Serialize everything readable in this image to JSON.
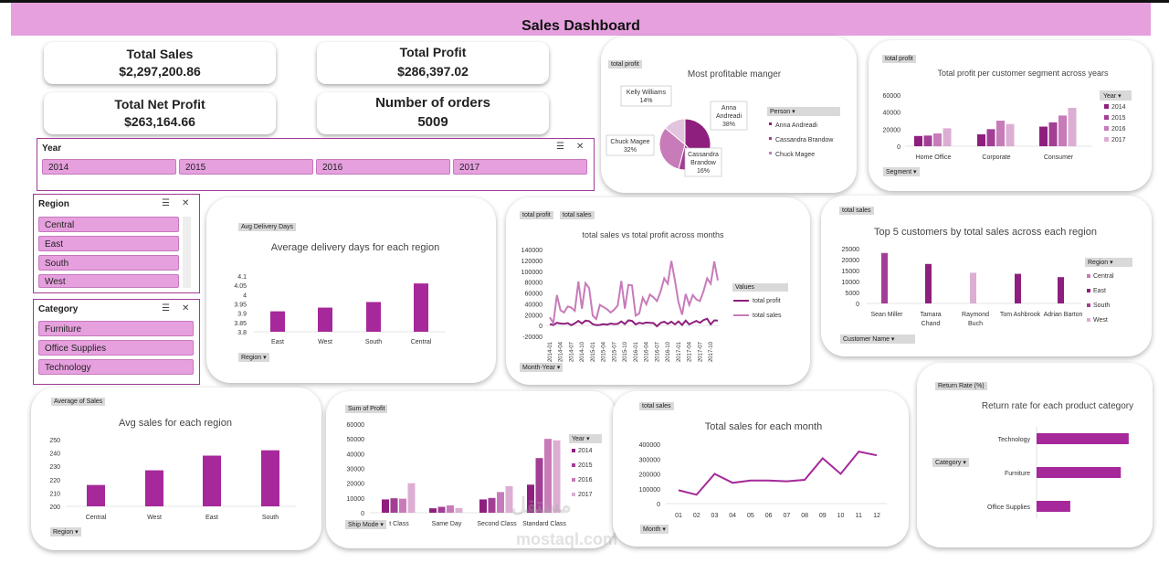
{
  "dashboard": {
    "title": "Sales Dashboard"
  },
  "kpis": {
    "total_sales": {
      "label": "Total Sales",
      "value": "$2,297,200.86"
    },
    "total_profit": {
      "label": "Total Profit",
      "value": "$286,397.02"
    },
    "total_net_profit": {
      "label": "Total Net Profit",
      "value": "$263,164.66"
    },
    "orders": {
      "label": "Number of orders",
      "value": "5009"
    }
  },
  "slicers": {
    "year": {
      "title": "Year",
      "items": [
        "2014",
        "2015",
        "2016",
        "2017"
      ]
    },
    "region": {
      "title": "Region",
      "items": [
        "Central",
        "East",
        "South",
        "West"
      ]
    },
    "category": {
      "title": "Category",
      "items": [
        "Furniture",
        "Office Supplies",
        "Technology"
      ]
    }
  },
  "colors": {
    "c2014": "#8e1f7e",
    "c2015": "#a33e95",
    "c2016": "#c87bb9",
    "c2017": "#dcaed3",
    "accent": "#a6289a",
    "banner": "#e6a0de"
  },
  "chart_data": [
    {
      "id": "pie",
      "type": "pie",
      "tag": "total profit",
      "title": "Most profitable manger",
      "legend_title": "Person",
      "slices": [
        {
          "name": "Anna Andreadi",
          "value": 38,
          "label_lines": [
            "Anna",
            "Andreadi",
            "38%"
          ]
        },
        {
          "name": "Cassandra Brandow",
          "value": 16,
          "label_lines": [
            "Cassandra",
            "Brandow",
            "16%"
          ]
        },
        {
          "name": "Chuck Magee",
          "value": 32,
          "label_lines": [
            "Chuck Magee",
            "32%"
          ]
        },
        {
          "name": "Kelly Williams",
          "value": 14,
          "label_lines": [
            "Kelly Williams",
            "14%"
          ]
        }
      ],
      "legend": [
        "Anna Andreadi",
        "Cassandra Brandow",
        "Chuck Magee"
      ]
    },
    {
      "id": "segment",
      "type": "bar",
      "tag": "total profit",
      "title": "Total profit per customer segment across years",
      "legend_title": "Year",
      "filter_label": "Segment",
      "categories": [
        "Home Office",
        "Corporate",
        "Consumer"
      ],
      "series": [
        {
          "name": "2014",
          "values": [
            12000,
            14000,
            23000
          ]
        },
        {
          "name": "2015",
          "values": [
            12500,
            20000,
            28000
          ]
        },
        {
          "name": "2016",
          "values": [
            15000,
            30000,
            36000
          ]
        },
        {
          "name": "2017",
          "values": [
            21000,
            26000,
            45000
          ]
        }
      ],
      "yticks": [
        "0",
        "20000",
        "40000",
        "60000"
      ],
      "ylim": [
        0,
        60000
      ]
    },
    {
      "id": "delivery",
      "type": "bar",
      "tag": "Avg Delivery Days",
      "title": "Average delivery days for each region",
      "filter_label": "Region",
      "categories": [
        "East",
        "West",
        "South",
        "Central"
      ],
      "values": [
        3.91,
        3.93,
        3.96,
        4.06
      ],
      "yticks": [
        "3.8",
        "3.85",
        "3.9",
        "3.95",
        "4",
        "4.05",
        "4.1"
      ],
      "ylim": [
        3.8,
        4.1
      ]
    },
    {
      "id": "months",
      "type": "line",
      "tags": [
        "total profit",
        "total sales"
      ],
      "title": "total sales vs total profit across months",
      "legend_title": "Values",
      "filter_label": "Month-Year",
      "x": [
        "2014-01",
        "2014-02",
        "2014-03",
        "2014-04",
        "2014-05",
        "2014-06",
        "2014-07",
        "2014-08",
        "2014-09",
        "2014-10",
        "2014-11",
        "2014-12",
        "2015-01",
        "2015-02",
        "2015-03",
        "2015-04",
        "2015-05",
        "2015-06",
        "2015-07",
        "2015-08",
        "2015-09",
        "2015-10",
        "2015-11",
        "2015-12",
        "2016-01",
        "2016-02",
        "2016-03",
        "2016-04",
        "2016-05",
        "2016-06",
        "2016-07",
        "2016-08",
        "2016-09",
        "2016-10",
        "2016-11",
        "2016-12",
        "2017-01",
        "2017-02",
        "2017-03",
        "2017-04",
        "2017-05",
        "2017-06",
        "2017-07",
        "2017-08",
        "2017-09",
        "2017-10",
        "2017-11",
        "2017-12"
      ],
      "xticks": [
        "2014-01",
        "2014-04",
        "2014-07",
        "2014-10",
        "2015-01",
        "2015-04",
        "2015-07",
        "2015-10",
        "2016-01",
        "2016-04",
        "2016-07",
        "2016-10",
        "2017-01",
        "2017-04",
        "2017-07",
        "2017-10"
      ],
      "series": [
        {
          "name": "total profit",
          "values": [
            2500,
            800,
            5000,
            3500,
            3000,
            4500,
            500,
            4000,
            8500,
            3500,
            9000,
            8000,
            2500,
            500,
            1000,
            2500,
            1500,
            3500,
            2500,
            3000,
            7500,
            2500,
            9500,
            8500,
            2000,
            5000,
            3500,
            5500,
            5000,
            4500,
            -1500,
            5000,
            7000,
            3000,
            7000,
            2000,
            7500,
            1000,
            9000,
            2000,
            5500,
            8500,
            5000,
            10000,
            12500,
            2000,
            9500,
            9000
          ]
        },
        {
          "name": "total sales",
          "values": [
            15000,
            4500,
            56000,
            28000,
            24000,
            35000,
            33000,
            27000,
            81000,
            31000,
            78000,
            69000,
            18000,
            12000,
            38000,
            34000,
            30000,
            24000,
            29000,
            37000,
            82000,
            31000,
            75000,
            74000,
            18000,
            22000,
            51000,
            39000,
            57000,
            52000,
            45000,
            63000,
            87000,
            77000,
            119000,
            83000,
            43000,
            20000,
            58000,
            38000,
            56000,
            48000,
            45000,
            63000,
            87000,
            77000,
            118000,
            83000
          ]
        }
      ],
      "yticks": [
        "-20000",
        "0",
        "20000",
        "40000",
        "60000",
        "80000",
        "100000",
        "120000",
        "140000"
      ],
      "ylim": [
        -20000,
        140000
      ]
    },
    {
      "id": "top5",
      "type": "bar",
      "tag": "total sales",
      "title": "Top 5 customers by total sales across each region",
      "legend_title": "Region",
      "filter_label": "Customer Name",
      "categories": [
        "Sean Miller",
        "Tamara Chand",
        "Raymond Buch",
        "Tom Ashbrook",
        "Adrian Barton"
      ],
      "category_lines": [
        [
          "Sean Miller"
        ],
        [
          "Tamara",
          "Chand"
        ],
        [
          "Raymond",
          "Buch"
        ],
        [
          "Tom Ashbrook"
        ],
        [
          "Adrian Barton"
        ]
      ],
      "series": [
        {
          "name": "Central",
          "values": [
            0,
            0,
            0,
            0,
            400
          ]
        },
        {
          "name": "East",
          "values": [
            0,
            18000,
            0,
            13500,
            12000
          ]
        },
        {
          "name": "South",
          "values": [
            23000,
            0,
            0,
            0,
            0
          ]
        },
        {
          "name": "West",
          "values": [
            0,
            0,
            14000,
            0,
            0
          ]
        }
      ],
      "yticks": [
        "0",
        "5000",
        "10000",
        "15000",
        "20000",
        "25000"
      ],
      "ylim": [
        0,
        25000
      ]
    },
    {
      "id": "avgsales",
      "type": "bar",
      "tag": "Average of Sales",
      "title": "Avg sales for each region",
      "filter_label": "Region",
      "categories": [
        "Central",
        "West",
        "East",
        "South"
      ],
      "values": [
        216,
        227,
        238,
        242
      ],
      "yticks": [
        "200",
        "210",
        "220",
        "230",
        "240",
        "250"
      ],
      "ylim": [
        200,
        250
      ]
    },
    {
      "id": "shipmode",
      "type": "bar",
      "tag": "Sum of Profit",
      "legend_title": "Year",
      "filter_label": "Ship Mode",
      "categories": [
        "First Class",
        "Same Day",
        "Second Class",
        "Standard Class"
      ],
      "category_display": [
        "t Class",
        "Same Day",
        "Second Class",
        "Standard Class"
      ],
      "series": [
        {
          "name": "2014",
          "values": [
            9000,
            3000,
            9000,
            19000
          ]
        },
        {
          "name": "2015",
          "values": [
            9800,
            4000,
            10000,
            37000
          ]
        },
        {
          "name": "2016",
          "values": [
            9500,
            5000,
            14000,
            50000
          ]
        },
        {
          "name": "2017",
          "values": [
            20000,
            3200,
            18000,
            49000
          ]
        }
      ],
      "yticks": [
        "0",
        "10000",
        "20000",
        "30000",
        "40000",
        "50000",
        "60000"
      ],
      "ylim": [
        0,
        60000
      ]
    },
    {
      "id": "monthly",
      "type": "line",
      "tag": "total sales",
      "title": "Total sales for each month",
      "filter_label": "Month",
      "x": [
        "01",
        "02",
        "03",
        "04",
        "05",
        "06",
        "07",
        "08",
        "09",
        "10",
        "11",
        "12"
      ],
      "values": [
        90000,
        60000,
        200000,
        140000,
        155000,
        155000,
        150000,
        160000,
        305000,
        200000,
        350000,
        325000
      ],
      "yticks": [
        "0",
        "100000",
        "200000",
        "300000",
        "400000"
      ],
      "ylim": [
        0,
        400000
      ]
    },
    {
      "id": "returns",
      "type": "bar",
      "orientation": "horizontal",
      "tag": "Return Rate (%)",
      "title": "Return rate for each product category",
      "filter_label": "Category",
      "categories": [
        "Technology",
        "Furniture",
        "Office Supplies"
      ],
      "values": [
        8.2,
        7.5,
        3.0
      ]
    }
  ],
  "watermark": {
    "line1": "مستقل",
    "line2": "mostaql.com"
  }
}
